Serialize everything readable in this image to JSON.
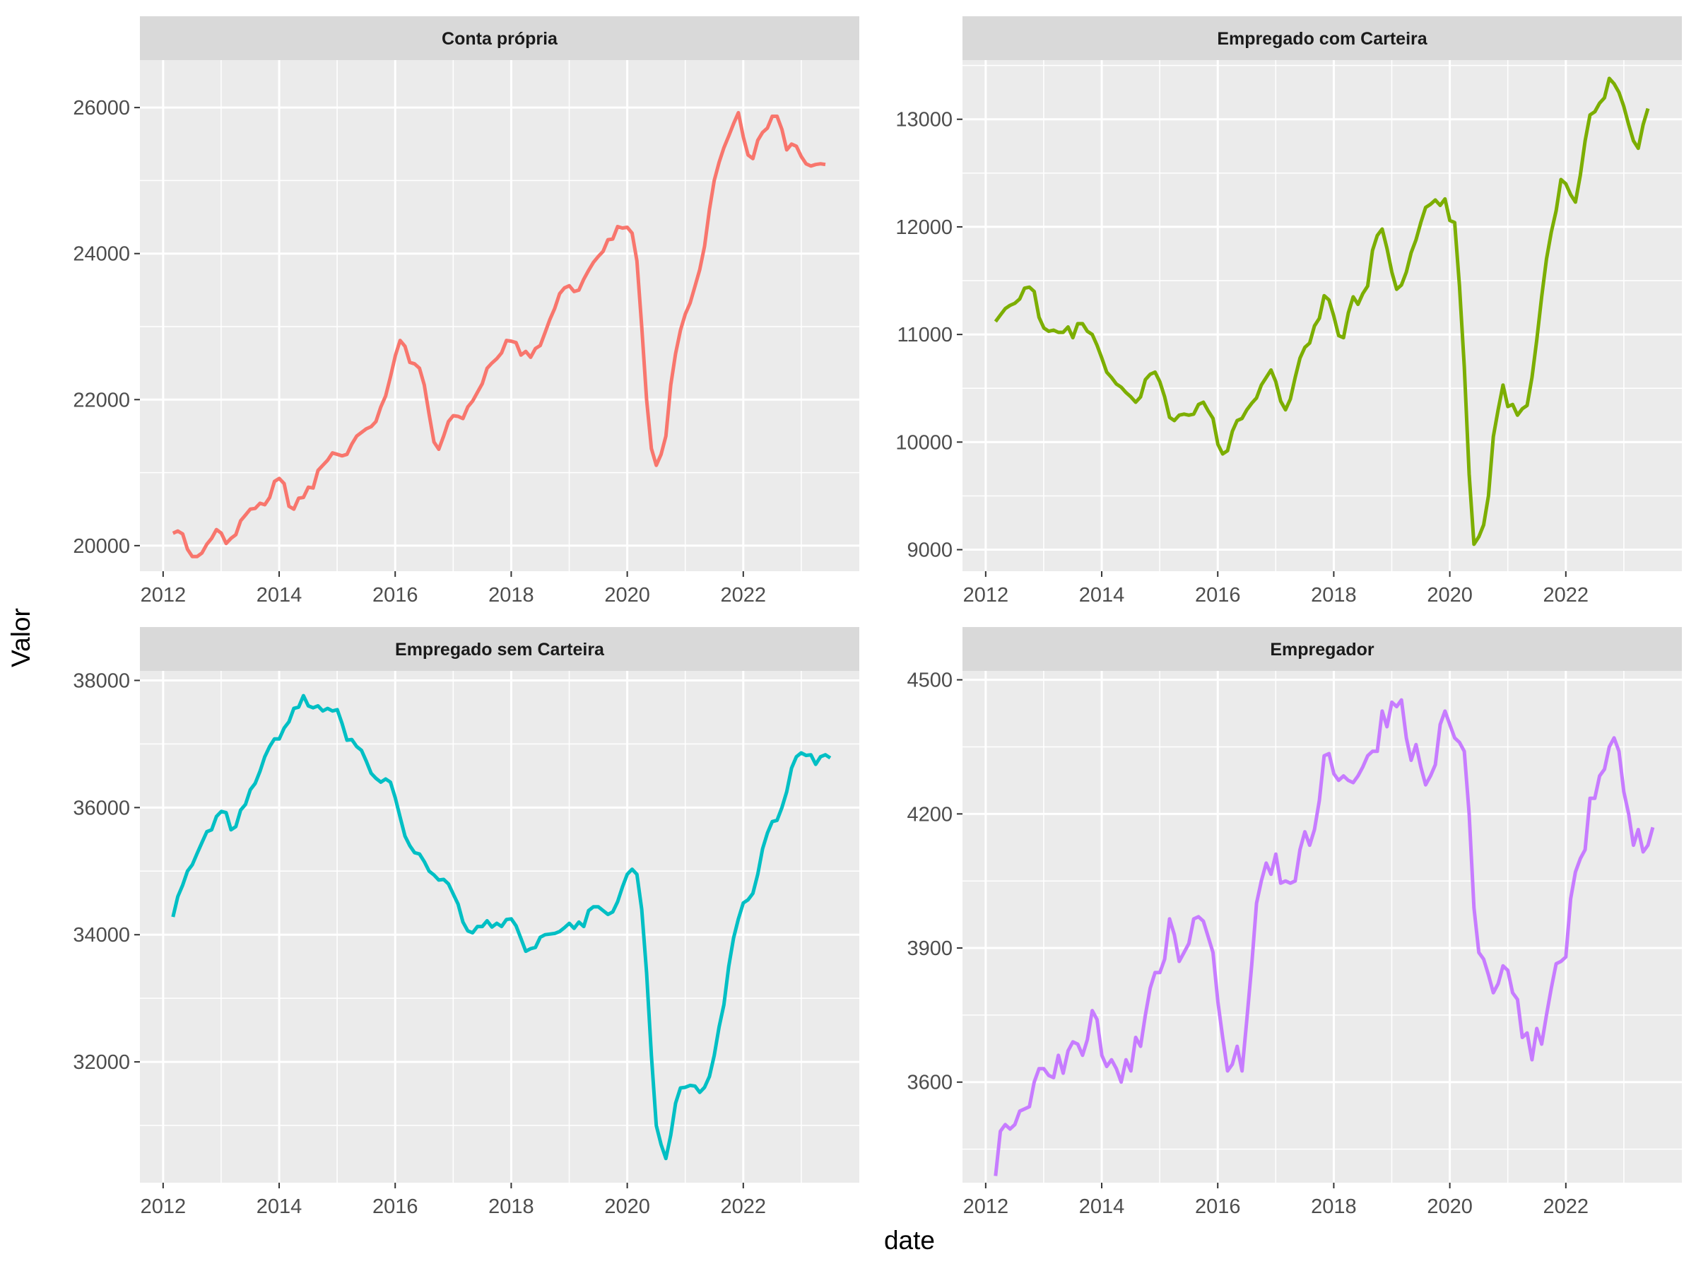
{
  "figure": {
    "xlabel": "date",
    "ylabel": "Valor"
  },
  "chart_data": [
    {
      "type": "line",
      "title": "Conta própria",
      "color": "#F8766D",
      "xlim": [
        2011.6,
        2024.0
      ],
      "ylim": [
        19650,
        26650
      ],
      "xticks": [
        2012,
        2014,
        2016,
        2018,
        2020,
        2022
      ],
      "yticks": [
        20000,
        22000,
        24000,
        26000
      ],
      "x_start": 2012.17,
      "x_step": 0.0833,
      "values": [
        20170,
        20200,
        20160,
        19950,
        19850,
        19850,
        19900,
        20020,
        20100,
        20220,
        20170,
        20030,
        20100,
        20150,
        20340,
        20420,
        20500,
        20510,
        20580,
        20560,
        20660,
        20880,
        20920,
        20850,
        20540,
        20500,
        20650,
        20660,
        20800,
        20790,
        21030,
        21100,
        21170,
        21270,
        21250,
        21230,
        21250,
        21390,
        21500,
        21550,
        21600,
        21630,
        21700,
        21900,
        22050,
        22310,
        22600,
        22810,
        22730,
        22510,
        22490,
        22430,
        22200,
        21800,
        21420,
        21320,
        21500,
        21700,
        21780,
        21770,
        21740,
        21900,
        21980,
        22100,
        22220,
        22430,
        22500,
        22560,
        22640,
        22810,
        22800,
        22780,
        22610,
        22660,
        22580,
        22700,
        22740,
        22920,
        23100,
        23250,
        23450,
        23530,
        23560,
        23480,
        23500,
        23650,
        23770,
        23880,
        23960,
        24030,
        24190,
        24200,
        24370,
        24350,
        24360,
        24280,
        23900,
        23000,
        22000,
        21330,
        21100,
        21250,
        21500,
        22200,
        22630,
        22950,
        23170,
        23320,
        23550,
        23780,
        24100,
        24600,
        25000,
        25250,
        25450,
        25610,
        25780,
        25930,
        25600,
        25350,
        25300,
        25550,
        25660,
        25720,
        25880,
        25880,
        25700,
        25420,
        25500,
        25470,
        25330,
        25230,
        25200,
        25220,
        25230,
        25220
      ]
    },
    {
      "type": "line",
      "title": "Empregado com Carteira",
      "color": "#7CAE00",
      "xlim": [
        2011.6,
        2024.0
      ],
      "ylim": [
        8800,
        13550
      ],
      "xticks": [
        2012,
        2014,
        2016,
        2018,
        2020,
        2022
      ],
      "yticks": [
        9000,
        10000,
        11000,
        12000,
        13000
      ],
      "x_start": 2012.17,
      "x_step": 0.0833,
      "values": [
        11120,
        11180,
        11240,
        11270,
        11290,
        11330,
        11430,
        11440,
        11400,
        11160,
        11060,
        11030,
        11040,
        11020,
        11020,
        11070,
        10970,
        11100,
        11100,
        11030,
        11000,
        10900,
        10780,
        10650,
        10600,
        10540,
        10510,
        10460,
        10420,
        10370,
        10420,
        10580,
        10630,
        10650,
        10560,
        10420,
        10230,
        10200,
        10250,
        10260,
        10250,
        10260,
        10350,
        10370,
        10290,
        10220,
        9980,
        9890,
        9920,
        10100,
        10200,
        10220,
        10300,
        10360,
        10410,
        10530,
        10600,
        10670,
        10560,
        10380,
        10300,
        10400,
        10600,
        10780,
        10880,
        10920,
        11080,
        11150,
        11360,
        11320,
        11170,
        10990,
        10970,
        11200,
        11350,
        11280,
        11380,
        11450,
        11780,
        11920,
        11980,
        11800,
        11580,
        11420,
        11460,
        11580,
        11760,
        11880,
        12040,
        12180,
        12210,
        12250,
        12200,
        12260,
        12060,
        12040,
        11450,
        10700,
        9700,
        9050,
        9120,
        9230,
        9500,
        10050,
        10300,
        10530,
        10330,
        10350,
        10250,
        10310,
        10340,
        10600,
        10950,
        11350,
        11700,
        11950,
        12150,
        12440,
        12400,
        12300,
        12230,
        12480,
        12800,
        13040,
        13070,
        13150,
        13200,
        13380,
        13330,
        13250,
        13120,
        12950,
        12800,
        12730,
        12950,
        13100
      ]
    },
    {
      "type": "line",
      "title": "Empregado sem Carteira",
      "color": "#00BFC4",
      "xlim": [
        2011.6,
        2024.0
      ],
      "ylim": [
        30100,
        38150
      ],
      "xticks": [
        2012,
        2014,
        2016,
        2018,
        2020,
        2022
      ],
      "yticks": [
        32000,
        34000,
        36000,
        38000
      ],
      "x_start": 2012.17,
      "x_step": 0.0833,
      "values": [
        34280,
        34600,
        34780,
        35000,
        35100,
        35280,
        35450,
        35620,
        35650,
        35860,
        35940,
        35920,
        35650,
        35700,
        35960,
        36050,
        36280,
        36380,
        36570,
        36800,
        36960,
        37080,
        37080,
        37250,
        37350,
        37560,
        37580,
        37760,
        37600,
        37570,
        37600,
        37520,
        37560,
        37520,
        37540,
        37320,
        37060,
        37070,
        36960,
        36900,
        36730,
        36540,
        36460,
        36400,
        36450,
        36400,
        36150,
        35850,
        35550,
        35400,
        35290,
        35270,
        35150,
        35000,
        34940,
        34860,
        34870,
        34800,
        34640,
        34480,
        34200,
        34060,
        34030,
        34130,
        34130,
        34220,
        34120,
        34180,
        34130,
        34240,
        34250,
        34140,
        33940,
        33740,
        33780,
        33800,
        33960,
        34000,
        34010,
        34020,
        34050,
        34110,
        34180,
        34100,
        34200,
        34130,
        34380,
        34440,
        34440,
        34380,
        34320,
        34360,
        34520,
        34750,
        34950,
        35030,
        34950,
        34400,
        33400,
        32100,
        31000,
        30700,
        30480,
        30850,
        31350,
        31590,
        31600,
        31630,
        31620,
        31520,
        31600,
        31770,
        32100,
        32550,
        32900,
        33500,
        33950,
        34250,
        34500,
        34550,
        34650,
        34950,
        35350,
        35600,
        35780,
        35800,
        36000,
        36250,
        36620,
        36800,
        36860,
        36820,
        36830,
        36680,
        36800,
        36830,
        36780
      ]
    },
    {
      "type": "line",
      "title": "Empregador",
      "color": "#C77CFF",
      "xlim": [
        2011.6,
        2024.0
      ],
      "ylim": [
        3375,
        4520
      ],
      "xticks": [
        2012,
        2014,
        2016,
        2018,
        2020,
        2022
      ],
      "yticks": [
        3600,
        3900,
        4200,
        4500
      ],
      "x_start": 2012.17,
      "x_step": 0.0833,
      "values": [
        3390,
        3490,
        3505,
        3495,
        3505,
        3535,
        3540,
        3545,
        3600,
        3630,
        3630,
        3615,
        3610,
        3660,
        3620,
        3670,
        3690,
        3685,
        3660,
        3695,
        3760,
        3740,
        3660,
        3635,
        3650,
        3630,
        3600,
        3650,
        3625,
        3700,
        3680,
        3750,
        3810,
        3845,
        3845,
        3875,
        3965,
        3930,
        3870,
        3890,
        3910,
        3965,
        3970,
        3960,
        3925,
        3890,
        3780,
        3700,
        3625,
        3640,
        3680,
        3625,
        3740,
        3860,
        4000,
        4050,
        4090,
        4065,
        4110,
        4045,
        4050,
        4045,
        4050,
        4120,
        4160,
        4130,
        4165,
        4230,
        4330,
        4335,
        4290,
        4275,
        4285,
        4275,
        4270,
        4285,
        4305,
        4330,
        4340,
        4340,
        4430,
        4395,
        4450,
        4440,
        4455,
        4370,
        4320,
        4355,
        4305,
        4265,
        4285,
        4310,
        4400,
        4430,
        4400,
        4370,
        4360,
        4340,
        4200,
        3990,
        3890,
        3875,
        3840,
        3800,
        3820,
        3860,
        3850,
        3800,
        3785,
        3700,
        3710,
        3650,
        3720,
        3685,
        3750,
        3810,
        3865,
        3870,
        3880,
        4010,
        4070,
        4100,
        4120,
        4235,
        4235,
        4285,
        4300,
        4350,
        4370,
        4340,
        4250,
        4200,
        4130,
        4165,
        4115,
        4130,
        4170
      ]
    }
  ]
}
